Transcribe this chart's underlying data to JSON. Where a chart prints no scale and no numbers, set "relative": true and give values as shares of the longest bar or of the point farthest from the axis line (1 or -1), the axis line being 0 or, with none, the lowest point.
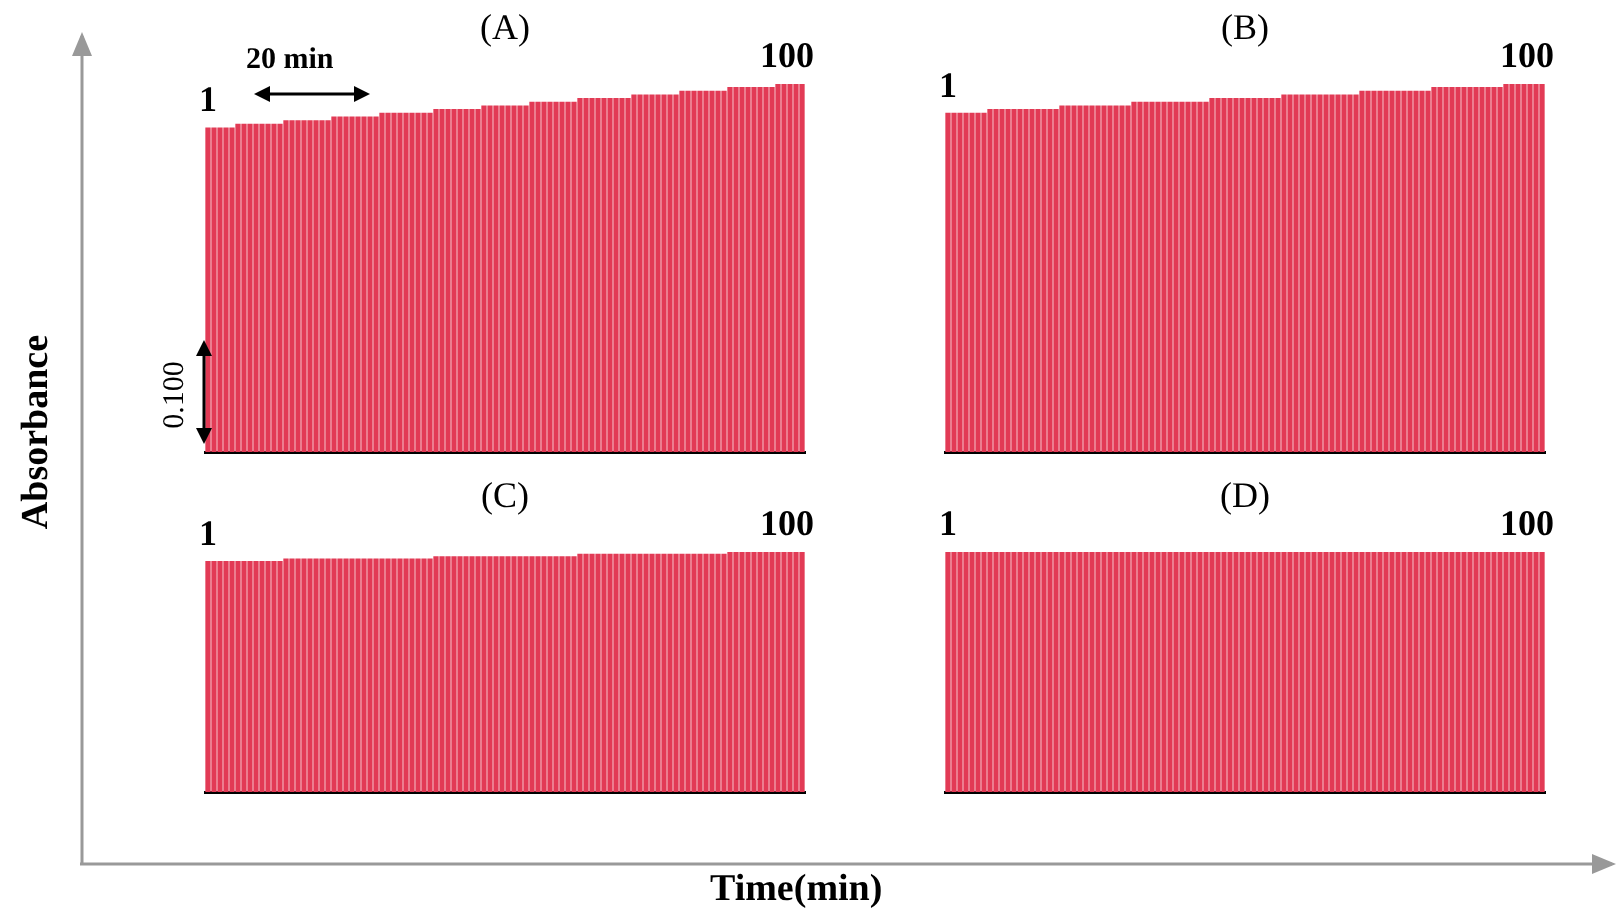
{
  "chart_data": [
    {
      "type": "bar",
      "title": "(A)",
      "ylabel": "Absorbance",
      "relative": true,
      "color": "#e23a55",
      "categories": [
        null,
        null,
        null,
        null,
        null,
        null,
        null,
        null,
        null,
        null,
        null,
        null,
        null,
        null,
        null,
        null,
        null,
        null,
        null,
        null,
        null,
        null,
        null,
        null,
        null,
        null,
        null,
        null,
        null,
        null,
        null,
        null,
        null,
        null,
        null,
        null,
        null,
        null,
        null,
        null,
        null,
        null,
        null,
        null,
        null,
        null,
        null,
        null,
        null,
        null,
        null,
        null,
        null,
        null,
        null,
        null,
        null,
        null,
        null,
        null,
        null,
        null,
        null,
        null,
        null,
        null,
        null,
        null,
        null,
        null,
        null,
        null,
        null,
        null,
        null,
        null,
        null,
        null,
        null,
        null,
        null,
        null,
        null,
        null,
        null,
        null,
        null,
        null,
        null,
        null,
        null,
        null,
        null,
        null,
        null,
        null,
        null,
        null,
        null,
        null
      ],
      "values": [
        0.88,
        0.88,
        0.88,
        0.88,
        0.88,
        0.89,
        0.89,
        0.89,
        0.89,
        0.89,
        0.89,
        0.89,
        0.89,
        0.9,
        0.9,
        0.9,
        0.9,
        0.9,
        0.9,
        0.9,
        0.9,
        0.91,
        0.91,
        0.91,
        0.91,
        0.91,
        0.91,
        0.91,
        0.91,
        0.92,
        0.92,
        0.92,
        0.92,
        0.92,
        0.92,
        0.92,
        0.92,
        0.92,
        0.93,
        0.93,
        0.93,
        0.93,
        0.93,
        0.93,
        0.93,
        0.93,
        0.94,
        0.94,
        0.94,
        0.94,
        0.94,
        0.94,
        0.94,
        0.94,
        0.95,
        0.95,
        0.95,
        0.95,
        0.95,
        0.95,
        0.95,
        0.95,
        0.96,
        0.96,
        0.96,
        0.96,
        0.96,
        0.96,
        0.96,
        0.96,
        0.96,
        0.97,
        0.97,
        0.97,
        0.97,
        0.97,
        0.97,
        0.97,
        0.97,
        0.98,
        0.98,
        0.98,
        0.98,
        0.98,
        0.98,
        0.98,
        0.98,
        0.99,
        0.99,
        0.99,
        0.99,
        0.99,
        0.99,
        0.99,
        0.99,
        1,
        1,
        1,
        1,
        1
      ],
      "annotations": [
        "1",
        "100",
        "20 min",
        "0.100"
      ]
    },
    {
      "type": "bar",
      "title": "(B)",
      "relative": true,
      "color": "#e23a55",
      "categories": [
        null,
        null,
        null,
        null,
        null,
        null,
        null,
        null,
        null,
        null,
        null,
        null,
        null,
        null,
        null,
        null,
        null,
        null,
        null,
        null,
        null,
        null,
        null,
        null,
        null,
        null,
        null,
        null,
        null,
        null,
        null,
        null,
        null,
        null,
        null,
        null,
        null,
        null,
        null,
        null,
        null,
        null,
        null,
        null,
        null,
        null,
        null,
        null,
        null,
        null,
        null,
        null,
        null,
        null,
        null,
        null,
        null,
        null,
        null,
        null,
        null,
        null,
        null,
        null,
        null,
        null,
        null,
        null,
        null,
        null,
        null,
        null,
        null,
        null,
        null,
        null,
        null,
        null,
        null,
        null,
        null,
        null,
        null,
        null,
        null,
        null,
        null,
        null,
        null,
        null,
        null,
        null,
        null,
        null,
        null,
        null,
        null,
        null,
        null,
        null
      ],
      "values": [
        0.92,
        0.92,
        0.92,
        0.92,
        0.92,
        0.92,
        0.92,
        0.93,
        0.93,
        0.93,
        0.93,
        0.93,
        0.93,
        0.93,
        0.93,
        0.93,
        0.93,
        0.93,
        0.93,
        0.94,
        0.94,
        0.94,
        0.94,
        0.94,
        0.94,
        0.94,
        0.94,
        0.94,
        0.94,
        0.94,
        0.94,
        0.95,
        0.95,
        0.95,
        0.95,
        0.95,
        0.95,
        0.95,
        0.95,
        0.95,
        0.95,
        0.95,
        0.95,
        0.95,
        0.96,
        0.96,
        0.96,
        0.96,
        0.96,
        0.96,
        0.96,
        0.96,
        0.96,
        0.96,
        0.96,
        0.96,
        0.97,
        0.97,
        0.97,
        0.97,
        0.97,
        0.97,
        0.97,
        0.97,
        0.97,
        0.97,
        0.97,
        0.97,
        0.97,
        0.98,
        0.98,
        0.98,
        0.98,
        0.98,
        0.98,
        0.98,
        0.98,
        0.98,
        0.98,
        0.98,
        0.98,
        0.99,
        0.99,
        0.99,
        0.99,
        0.99,
        0.99,
        0.99,
        0.99,
        0.99,
        0.99,
        0.99,
        0.99,
        1,
        1,
        1,
        1,
        1,
        1,
        1
      ],
      "annotations": [
        "1",
        "100"
      ]
    },
    {
      "type": "bar",
      "title": "(C)",
      "xlabel": "Time(min)",
      "relative": true,
      "color": "#e23a55",
      "categories": [
        null,
        null,
        null,
        null,
        null,
        null,
        null,
        null,
        null,
        null,
        null,
        null,
        null,
        null,
        null,
        null,
        null,
        null,
        null,
        null,
        null,
        null,
        null,
        null,
        null,
        null,
        null,
        null,
        null,
        null,
        null,
        null,
        null,
        null,
        null,
        null,
        null,
        null,
        null,
        null,
        null,
        null,
        null,
        null,
        null,
        null,
        null,
        null,
        null,
        null,
        null,
        null,
        null,
        null,
        null,
        null,
        null,
        null,
        null,
        null,
        null,
        null,
        null,
        null,
        null,
        null,
        null,
        null,
        null,
        null,
        null,
        null,
        null,
        null,
        null,
        null,
        null,
        null,
        null,
        null,
        null,
        null,
        null,
        null,
        null,
        null,
        null,
        null,
        null,
        null,
        null,
        null,
        null,
        null,
        null,
        null,
        null,
        null,
        null,
        null
      ],
      "values": [
        0.96,
        0.96,
        0.96,
        0.96,
        0.96,
        0.96,
        0.96,
        0.96,
        0.96,
        0.96,
        0.96,
        0.96,
        0.96,
        0.97,
        0.97,
        0.97,
        0.97,
        0.97,
        0.97,
        0.97,
        0.97,
        0.97,
        0.97,
        0.97,
        0.97,
        0.97,
        0.97,
        0.97,
        0.97,
        0.97,
        0.97,
        0.97,
        0.97,
        0.97,
        0.97,
        0.97,
        0.97,
        0.97,
        0.98,
        0.98,
        0.98,
        0.98,
        0.98,
        0.98,
        0.98,
        0.98,
        0.98,
        0.98,
        0.98,
        0.98,
        0.98,
        0.98,
        0.98,
        0.98,
        0.98,
        0.98,
        0.98,
        0.98,
        0.98,
        0.98,
        0.98,
        0.98,
        0.99,
        0.99,
        0.99,
        0.99,
        0.99,
        0.99,
        0.99,
        0.99,
        0.99,
        0.99,
        0.99,
        0.99,
        0.99,
        0.99,
        0.99,
        0.99,
        0.99,
        0.99,
        0.99,
        0.99,
        0.99,
        0.99,
        0.99,
        0.99,
        0.99,
        1,
        1,
        1,
        1,
        1,
        1,
        1,
        1,
        1,
        1,
        1,
        1,
        1
      ],
      "annotations": [
        "1",
        "100"
      ]
    },
    {
      "type": "bar",
      "title": "(D)",
      "relative": true,
      "color": "#e23a55",
      "categories": [
        null,
        null,
        null,
        null,
        null,
        null,
        null,
        null,
        null,
        null,
        null,
        null,
        null,
        null,
        null,
        null,
        null,
        null,
        null,
        null,
        null,
        null,
        null,
        null,
        null,
        null,
        null,
        null,
        null,
        null,
        null,
        null,
        null,
        null,
        null,
        null,
        null,
        null,
        null,
        null,
        null,
        null,
        null,
        null,
        null,
        null,
        null,
        null,
        null,
        null,
        null,
        null,
        null,
        null,
        null,
        null,
        null,
        null,
        null,
        null,
        null,
        null,
        null,
        null,
        null,
        null,
        null,
        null,
        null,
        null,
        null,
        null,
        null,
        null,
        null,
        null,
        null,
        null,
        null,
        null,
        null,
        null,
        null,
        null,
        null,
        null,
        null,
        null,
        null,
        null,
        null,
        null,
        null,
        null,
        null,
        null,
        null,
        null,
        null,
        null
      ],
      "values": [
        1,
        1,
        1,
        1,
        1,
        1,
        1,
        1,
        1,
        1,
        1,
        1,
        1,
        1,
        1,
        1,
        1,
        1,
        1,
        1,
        1,
        1,
        1,
        1,
        1,
        1,
        1,
        1,
        1,
        1,
        1,
        1,
        1,
        1,
        1,
        1,
        1,
        1,
        1,
        1,
        1,
        1,
        1,
        1,
        1,
        1,
        1,
        1,
        1,
        1,
        1,
        1,
        1,
        1,
        1,
        1,
        1,
        1,
        1,
        1,
        1,
        1,
        1,
        1,
        1,
        1,
        1,
        1,
        1,
        1,
        1,
        1,
        1,
        1,
        1,
        1,
        1,
        1,
        1,
        1,
        1,
        1,
        1,
        1,
        1,
        1,
        1,
        1,
        1,
        1,
        1,
        1,
        1,
        1,
        1,
        1,
        1,
        1,
        1,
        1
      ],
      "annotations": [
        "1",
        "100"
      ]
    }
  ]
}
